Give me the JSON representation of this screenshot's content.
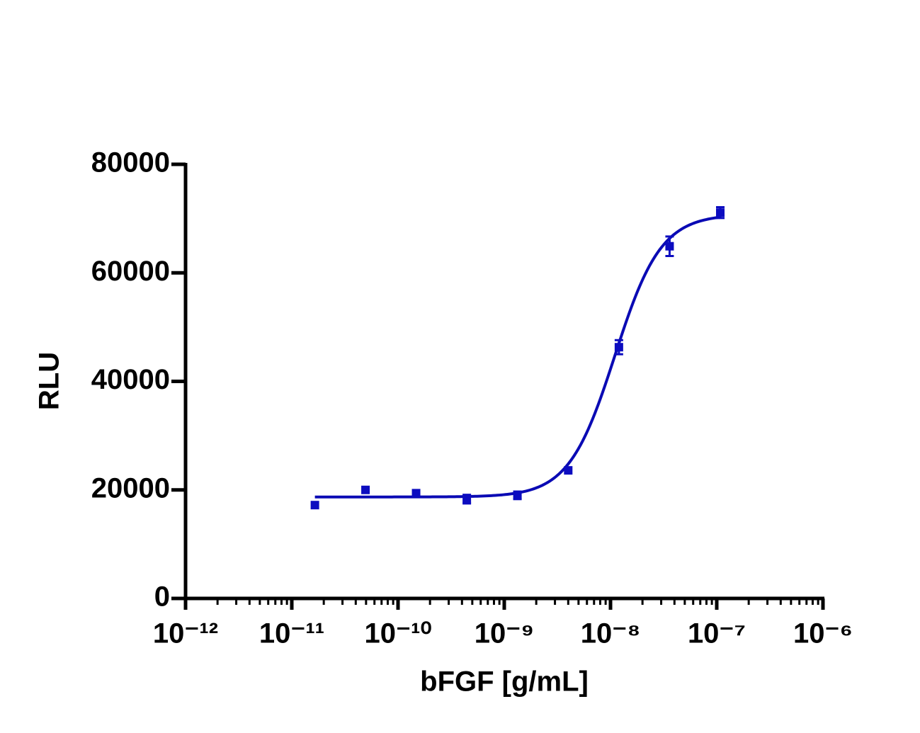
{
  "chart_data": {
    "type": "scatter",
    "x_label": "bFGF [g/mL]",
    "y_label": "RLU",
    "x": [
      1.65e-11,
      4.94e-11,
      1.48e-10,
      4.44e-10,
      1.33e-09,
      4e-09,
      1.2e-08,
      3.6e-08,
      1.08e-07
    ],
    "series": [
      {
        "color": "#0c0cc0",
        "values": [
          17200,
          20000,
          19400,
          18300,
          19000,
          23600,
          46300,
          64900,
          71100
        ],
        "errors": [
          0,
          0,
          0,
          800,
          700,
          0,
          1300,
          1800,
          1000
        ]
      }
    ],
    "fit": {
      "bottom": 18700,
      "top": 70800,
      "ec50": 1.1e-08,
      "hill": 2,
      "color": "#0a0ab4"
    },
    "x_log": true,
    "xlim": [
      1e-12,
      1e-06
    ],
    "xticks": [
      {
        "value": 1e-12,
        "label": "10⁻¹²"
      },
      {
        "value": 1e-11,
        "label": "10⁻¹¹"
      },
      {
        "value": 1e-10,
        "label": "10⁻¹⁰"
      },
      {
        "value": 1e-09,
        "label": "10⁻⁹"
      },
      {
        "value": 1e-08,
        "label": "10⁻⁸"
      },
      {
        "value": 1e-07,
        "label": "10⁻⁷"
      },
      {
        "value": 1e-06,
        "label": "10⁻⁶"
      }
    ],
    "ylim": [
      0,
      80000
    ],
    "yticks": [
      0,
      20000,
      40000,
      60000,
      80000
    ]
  }
}
